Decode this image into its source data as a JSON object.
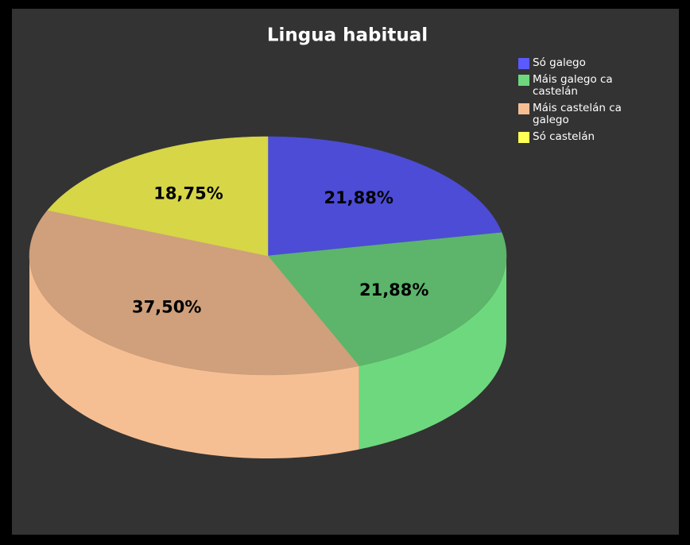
{
  "chart_data": {
    "type": "pie",
    "title": "Lingua habitual",
    "categories": [
      "Só galego",
      "Máis galego ca castelán",
      "Máis castelán ca galego",
      "Só castelán"
    ],
    "values": [
      21.88,
      21.88,
      37.5,
      18.75
    ],
    "value_labels": [
      "21,88%",
      "21,88%",
      "37,50%",
      "18,75%"
    ],
    "colors": [
      "#5a5aff",
      "#6ed87e",
      "#f6bf93",
      "#ffff55"
    ],
    "legend": "right"
  }
}
